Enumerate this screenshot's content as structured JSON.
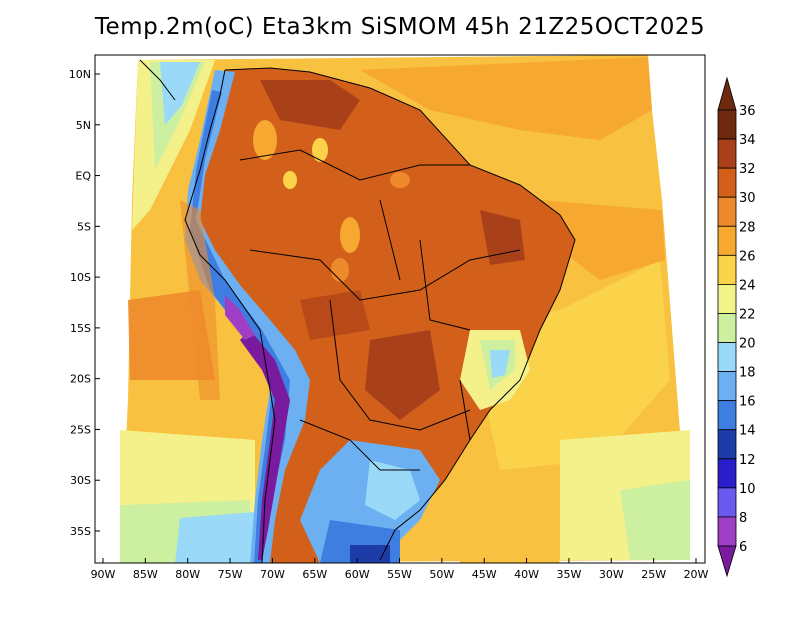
{
  "title": "Temp.2m(oC) Eta3km SiSMOM 45h 21Z25OCT2025",
  "lat_labels": [
    "10N",
    "5N",
    "EQ",
    "5S",
    "10S",
    "15S",
    "20S",
    "25S",
    "30S",
    "35S"
  ],
  "lon_labels": [
    "90W",
    "85W",
    "80W",
    "75W",
    "70W",
    "65W",
    "60W",
    "55W",
    "50W",
    "45W",
    "40W",
    "35W",
    "30W",
    "25W",
    "20W"
  ],
  "colorbar": {
    "levels": [
      6,
      8,
      10,
      12,
      14,
      16,
      18,
      20,
      22,
      24,
      26,
      28,
      30,
      32,
      34,
      36
    ],
    "labels": [
      "6",
      "8",
      "10",
      "12",
      "14",
      "16",
      "18",
      "20",
      "22",
      "24",
      "26",
      "28",
      "30",
      "32",
      "34",
      "36"
    ],
    "colors": [
      "#7a1a9e",
      "#9e3fc6",
      "#6a5af0",
      "#2a1ec8",
      "#1e3ca8",
      "#3e7ee0",
      "#6cb0f2",
      "#9ad9f7",
      "#cdf0a0",
      "#f2f48a",
      "#fbd34a",
      "#f6a830",
      "#ee8a2c",
      "#d2601a",
      "#a8401a",
      "#6e2a10"
    ],
    "over_color": "#6e2a10",
    "under_color": "#7a1a9e"
  }
}
